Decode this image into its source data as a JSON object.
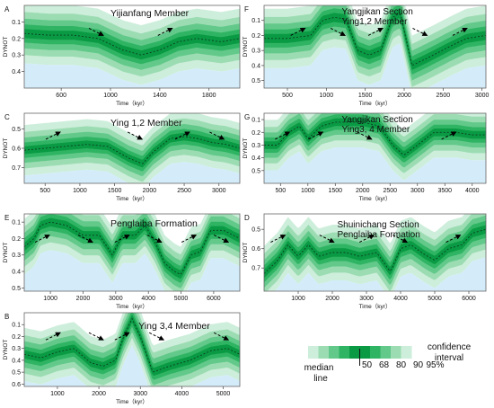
{
  "chart_data": [
    {
      "type": "area",
      "panel_letter": "A",
      "title": "Yijianfang Member",
      "xlabel": "Time（kyr）",
      "ylabel": "DYNOT",
      "xlim": [
        300,
        2050
      ],
      "ylim": [
        0.0,
        0.5
      ],
      "y_reversed": true,
      "xticks": [
        600,
        1000,
        1400,
        1800
      ],
      "yticks": [
        0.1,
        0.2,
        0.3,
        0.4
      ],
      "median": {
        "x": [
          300,
          500,
          700,
          900,
          1100,
          1250,
          1400,
          1550,
          1700,
          1900,
          2050
        ],
        "y": [
          0.17,
          0.18,
          0.18,
          0.2,
          0.27,
          0.3,
          0.27,
          0.22,
          0.2,
          0.22,
          0.2
        ]
      },
      "trend_arrows": [
        "down",
        "up"
      ]
    },
    {
      "type": "area",
      "panel_letter": "F",
      "title": "Yangjikan Section",
      "subtitle": "Ying1,2 Member",
      "xlabel": "Time（kyr）",
      "ylabel": "DYNOT",
      "xlim": [
        200,
        3050
      ],
      "ylim": [
        0.0,
        0.55
      ],
      "y_reversed": true,
      "xticks": [
        500,
        1000,
        1500,
        2000,
        2500,
        3000
      ],
      "yticks": [
        0.1,
        0.2,
        0.3,
        0.4,
        0.5
      ],
      "median": {
        "x": [
          200,
          500,
          800,
          950,
          1100,
          1250,
          1400,
          1550,
          1700,
          1850,
          1950,
          2100,
          2300,
          2600,
          2800,
          3050
        ],
        "y": [
          0.22,
          0.22,
          0.2,
          0.1,
          0.08,
          0.09,
          0.3,
          0.33,
          0.3,
          0.08,
          0.05,
          0.4,
          0.35,
          0.27,
          0.22,
          0.2
        ]
      },
      "trend_arrows": [
        "up",
        "down",
        "up",
        "down",
        "up"
      ]
    },
    {
      "type": "area",
      "panel_letter": "C",
      "title": "Ying 1,2 Member",
      "xlabel": "Time（kyr）",
      "ylabel": "DYNOT",
      "xlim": [
        200,
        3300
      ],
      "ylim": [
        0.42,
        0.78
      ],
      "y_reversed": true,
      "xticks": [
        500,
        1000,
        1500,
        2000,
        2500,
        3000
      ],
      "yticks": [
        0.5,
        0.6,
        0.7
      ],
      "median": {
        "x": [
          200,
          500,
          800,
          1100,
          1400,
          1700,
          1900,
          2050,
          2300,
          2500,
          2700,
          2900,
          3100,
          3300
        ],
        "y": [
          0.61,
          0.6,
          0.59,
          0.58,
          0.59,
          0.65,
          0.68,
          0.62,
          0.55,
          0.54,
          0.55,
          0.57,
          0.58,
          0.6
        ]
      },
      "trend_arrows": [
        "up",
        "down",
        "up",
        "down"
      ]
    },
    {
      "type": "area",
      "panel_letter": "G",
      "title": "Yangjikan Section",
      "subtitle": "Ying3, 4 Member",
      "xlabel": "Time（kyr）",
      "ylabel": "DYNOT",
      "xlim": [
        200,
        4250
      ],
      "ylim": [
        0.05,
        0.6
      ],
      "y_reversed": true,
      "xticks": [
        500,
        1000,
        1500,
        2000,
        2500,
        3000,
        3500,
        4000
      ],
      "yticks": [
        0.1,
        0.2,
        0.3,
        0.4,
        0.5
      ],
      "median": {
        "x": [
          200,
          450,
          650,
          850,
          1000,
          1250,
          1500,
          2000,
          2300,
          2550,
          2750,
          3000,
          3300,
          3700,
          4000,
          4250
        ],
        "y": [
          0.3,
          0.3,
          0.2,
          0.15,
          0.25,
          0.15,
          0.12,
          0.12,
          0.15,
          0.3,
          0.38,
          0.3,
          0.2,
          0.2,
          0.22,
          0.22
        ]
      },
      "trend_arrows": [
        "up",
        "up",
        "down",
        "up"
      ]
    },
    {
      "type": "area",
      "panel_letter": "E",
      "title": "Penglaiba Formation",
      "xlabel": "Time（kyr）",
      "ylabel": "DYNOT",
      "xlim": [
        200,
        6800
      ],
      "ylim": [
        0.05,
        0.52
      ],
      "y_reversed": true,
      "xticks": [
        1000,
        2000,
        3000,
        4000,
        5000,
        6000
      ],
      "yticks": [
        0.1,
        0.2,
        0.3,
        0.4,
        0.5
      ],
      "median": {
        "x": [
          200,
          500,
          700,
          1000,
          1500,
          2000,
          2500,
          2900,
          3200,
          3600,
          3900,
          4200,
          4500,
          4800,
          5000,
          5300,
          5600,
          5900,
          6300,
          6800
        ],
        "y": [
          0.25,
          0.2,
          0.12,
          0.1,
          0.12,
          0.18,
          0.18,
          0.3,
          0.18,
          0.18,
          0.12,
          0.22,
          0.35,
          0.4,
          0.42,
          0.3,
          0.28,
          0.15,
          0.15,
          0.2
        ]
      },
      "trend_arrows": [
        "up",
        "down",
        "up",
        "down",
        "up",
        "down"
      ]
    },
    {
      "type": "area",
      "panel_letter": "D",
      "title": "Shuinichang  Section",
      "subtitle": "Penglaiba Formation",
      "xlabel": "Time（kyr）",
      "ylabel": "DYNOT",
      "xlim": [
        0,
        6500
      ],
      "ylim": [
        0.42,
        0.82
      ],
      "y_reversed": true,
      "xticks": [
        1000,
        2000,
        3000,
        4000,
        5000,
        6000
      ],
      "yticks": [
        0.5,
        0.6,
        0.7
      ],
      "median": {
        "x": [
          0,
          400,
          700,
          1000,
          1300,
          1600,
          2000,
          2400,
          2800,
          3300,
          3700,
          4000,
          4300,
          4700,
          5000,
          5400,
          5800,
          6100,
          6500
        ],
        "y": [
          0.73,
          0.66,
          0.58,
          0.64,
          0.58,
          0.64,
          0.62,
          0.62,
          0.64,
          0.62,
          0.72,
          0.6,
          0.58,
          0.63,
          0.66,
          0.6,
          0.58,
          0.52,
          0.5
        ]
      },
      "trend_arrows": [
        "up",
        "down",
        "up",
        "down",
        "up"
      ]
    },
    {
      "type": "area",
      "panel_letter": "B",
      "title": "Ying 3,4 Member",
      "xlabel": "Time（kyr）",
      "ylabel": "DYNOT",
      "xlim": [
        200,
        5400
      ],
      "ylim": [
        0.0,
        0.62
      ],
      "y_reversed": true,
      "xticks": [
        1000,
        2000,
        3000,
        4000,
        5000
      ],
      "yticks": [
        0.1,
        0.2,
        0.3,
        0.4,
        0.5,
        0.6
      ],
      "median": {
        "x": [
          200,
          600,
          1000,
          1400,
          1800,
          2100,
          2400,
          2600,
          2800,
          3000,
          3300,
          3700,
          4200,
          4700,
          5100,
          5400
        ],
        "y": [
          0.35,
          0.38,
          0.33,
          0.3,
          0.42,
          0.45,
          0.4,
          0.2,
          0.05,
          0.2,
          0.5,
          0.45,
          0.4,
          0.32,
          0.3,
          0.35
        ]
      },
      "trend_arrows": [
        "up",
        "down",
        "up",
        "down",
        "down"
      ]
    }
  ],
  "legend": {
    "items": [
      "50",
      "68",
      "80",
      "90",
      "95%"
    ],
    "colors": [
      "#0a9a44",
      "#2fb463",
      "#62c98a",
      "#9cdcb2",
      "#cdeedb"
    ],
    "median_label_1": "median",
    "median_label_2": "line",
    "ci_label_1": "confidence",
    "ci_label_2": "interval"
  },
  "colors": {
    "fill": "#d4ecfa",
    "bands": [
      "#cdeedb",
      "#9cdcb2",
      "#62c98a",
      "#2fb463",
      "#0a9a44"
    ],
    "median": "#0b3e22",
    "frame": "#666666",
    "arrow": "#000000"
  }
}
